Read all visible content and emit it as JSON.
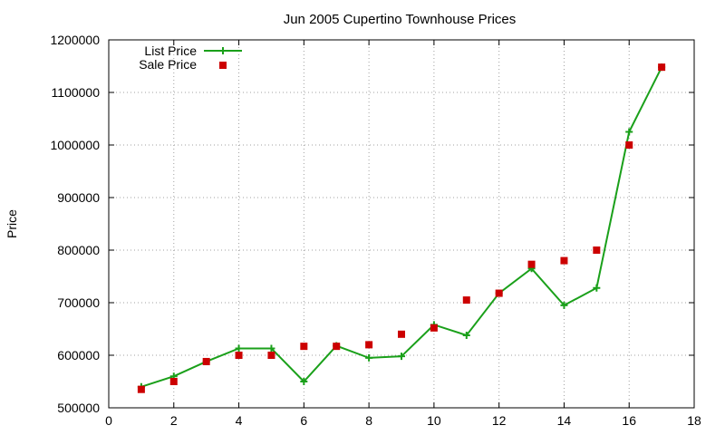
{
  "chart_data": {
    "type": "line",
    "title": "Jun 2005 Cupertino Townhouse Prices",
    "xlabel": "",
    "ylabel": "Price",
    "xlim": [
      0,
      18
    ],
    "ylim": [
      500000,
      1200000
    ],
    "x_ticks": [
      "0",
      "2",
      "4",
      "6",
      "8",
      "10",
      "12",
      "14",
      "16",
      "18"
    ],
    "y_ticks": [
      "500000",
      "600000",
      "700000",
      "800000",
      "900000",
      "1000000",
      "1100000",
      "1200000"
    ],
    "grid": true,
    "legend_position": "top-left",
    "series": [
      {
        "name": "List Price",
        "style": "line with plus markers",
        "color": "#1aa01a",
        "x": [
          1,
          2,
          3,
          4,
          5,
          6,
          7,
          8,
          9,
          10,
          11,
          12,
          13,
          14,
          15,
          16,
          17
        ],
        "values": [
          540000,
          560000,
          588000,
          613000,
          613000,
          550000,
          618000,
          595000,
          598000,
          658000,
          638000,
          718000,
          765000,
          695000,
          728000,
          1025000,
          1148000
        ]
      },
      {
        "name": "Sale Price",
        "style": "square markers",
        "color": "#cc0000",
        "x": [
          1,
          2,
          3,
          4,
          5,
          6,
          7,
          8,
          9,
          10,
          11,
          12,
          13,
          14,
          15,
          16,
          17
        ],
        "values": [
          535000,
          550000,
          588000,
          600000,
          600000,
          617000,
          617000,
          620000,
          640000,
          652000,
          705000,
          718000,
          773000,
          780000,
          800000,
          1000000,
          1148000
        ]
      }
    ]
  }
}
